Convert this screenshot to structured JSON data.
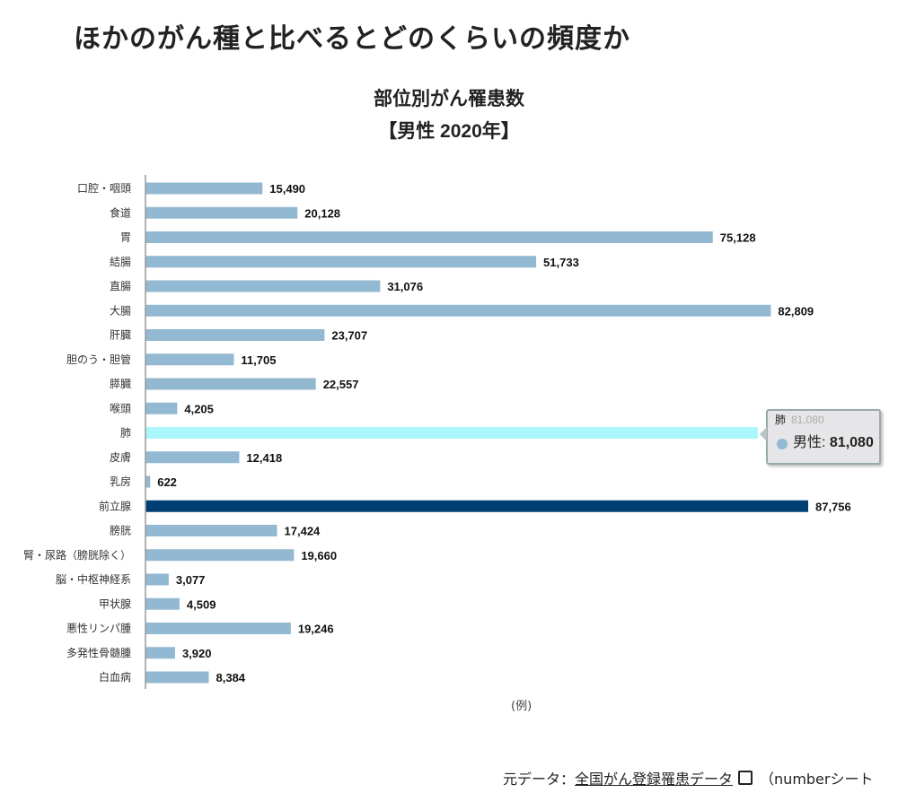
{
  "heading": "ほかのがん種と比べるとどのくらいの頻度か",
  "chart_data": {
    "type": "bar",
    "orientation": "horizontal",
    "title": [
      "部位別がん罹患数",
      "【男性 2020年】"
    ],
    "categories": [
      "口腔・咽頭",
      "食道",
      "胃",
      "結腸",
      "直腸",
      "大腸",
      "肝臓",
      "胆のう・胆管",
      "膵臓",
      "喉頭",
      "肺",
      "皮膚",
      "乳房",
      "前立腺",
      "膀胱",
      "腎・尿路（膀胱除く）",
      "脳・中枢神経系",
      "甲状腺",
      "悪性リンパ腫",
      "多発性骨髄腫",
      "白血病"
    ],
    "values": [
      15490,
      20128,
      75128,
      51733,
      31076,
      82809,
      23707,
      11705,
      22557,
      4205,
      81080,
      12418,
      622,
      87756,
      17424,
      19660,
      3077,
      4509,
      19246,
      3920,
      8384
    ],
    "labels": [
      "15,490",
      "20,128",
      "75,128",
      "51,733",
      "31,076",
      "82,809",
      "23,707",
      "11,705",
      "22,557",
      "4,205",
      "81,080",
      "12,418",
      "622",
      "87,756",
      "17,424",
      "19,660",
      "3,077",
      "4,509",
      "19,246",
      "3,920",
      "8,384"
    ],
    "xlim": [
      0,
      90000
    ],
    "grid": false,
    "colors": {
      "default": "#93b8d2",
      "highlight": "#003f73",
      "hover": "#aaf8fb"
    },
    "highlight_index": 13,
    "hover_index": 10,
    "legend": "(例)"
  },
  "tooltip": {
    "category": "肺",
    "ghost": "81,080",
    "series": "男性: ",
    "value": "81,080"
  },
  "source": {
    "prefix": "元データ：",
    "link": "全国がん登録罹患データ",
    "suffix": "（numberシート"
  }
}
